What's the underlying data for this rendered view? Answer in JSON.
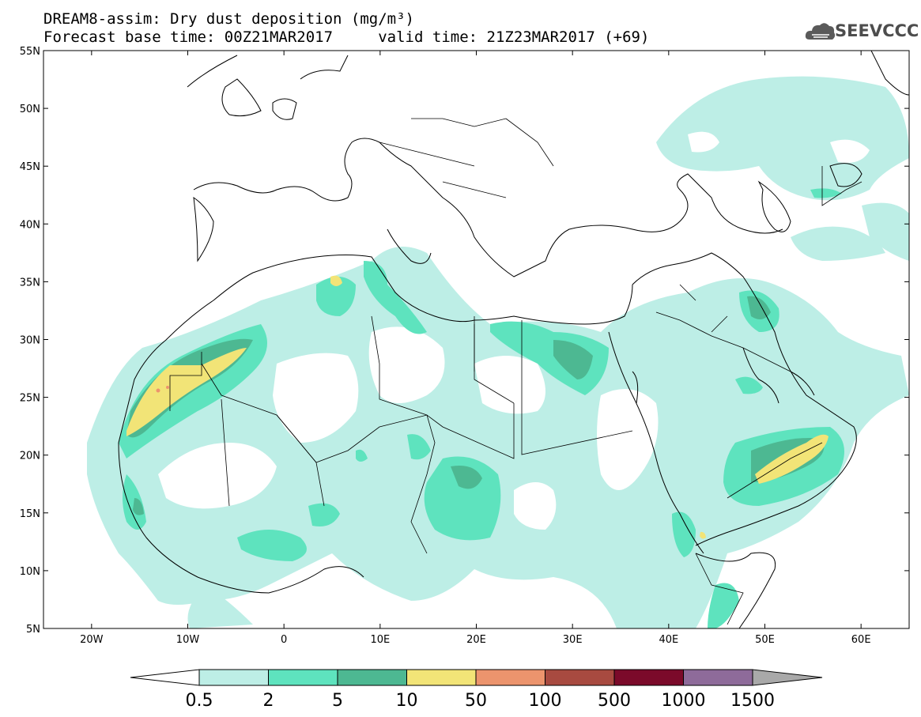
{
  "header": {
    "title_line1": "DREAM8-assim: Dry dust deposition (mg/m³)",
    "title_line2": "Forecast base time: 00Z21MAR2017     valid time: 21Z23MAR2017 (+69)",
    "logo_text": "SEEVCCC"
  },
  "map": {
    "lon_range": [
      -25,
      65
    ],
    "lat_range": [
      5,
      55
    ],
    "lon_ticks": [
      {
        "value": -20,
        "label": "20W"
      },
      {
        "value": -10,
        "label": "10W"
      },
      {
        "value": 0,
        "label": "0"
      },
      {
        "value": 10,
        "label": "10E"
      },
      {
        "value": 20,
        "label": "20E"
      },
      {
        "value": 30,
        "label": "30E"
      },
      {
        "value": 40,
        "label": "40E"
      },
      {
        "value": 50,
        "label": "50E"
      },
      {
        "value": 60,
        "label": "60E"
      }
    ],
    "lat_ticks": [
      {
        "value": 55,
        "label": "55N"
      },
      {
        "value": 50,
        "label": "50N"
      },
      {
        "value": 45,
        "label": "45N"
      },
      {
        "value": 40,
        "label": "40N"
      },
      {
        "value": 35,
        "label": "35N"
      },
      {
        "value": 30,
        "label": "30N"
      },
      {
        "value": 25,
        "label": "25N"
      },
      {
        "value": 20,
        "label": "20N"
      },
      {
        "value": 15,
        "label": "15N"
      },
      {
        "value": 10,
        "label": "10N"
      },
      {
        "value": 5,
        "label": "5N"
      }
    ]
  },
  "colorbar": {
    "labels": [
      "0.5",
      "2",
      "5",
      "10",
      "50",
      "100",
      "500",
      "1000",
      "1500"
    ],
    "colors": [
      "#ffffff",
      "#bdeee6",
      "#5ee3be",
      "#4db892",
      "#f2e477",
      "#ec946d",
      "#a84a40",
      "#7b0a2a",
      "#8e6b9a",
      "#a9a9a9"
    ]
  }
}
